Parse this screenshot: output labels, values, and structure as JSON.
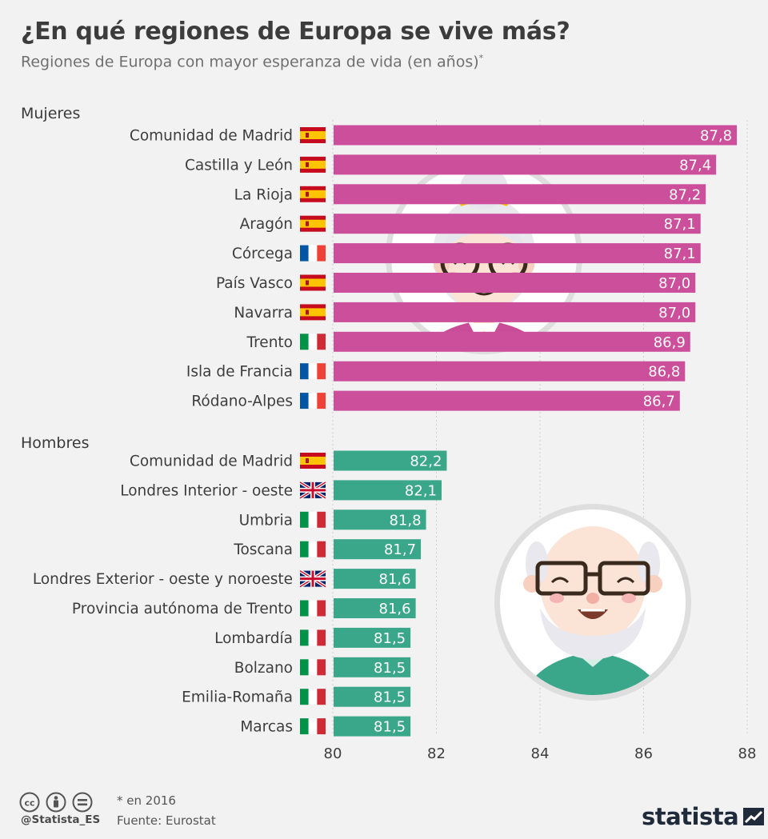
{
  "title": "¿En qué regiones de Europa se vive más?",
  "subtitle": "Regiones de Europa con mayor esperanza de vida (en años)",
  "subtitle_mark": "*",
  "colors": {
    "women_bar": "#cc4f9b",
    "men_bar": "#3aa68a",
    "background": "#f2f2f2"
  },
  "chart_data": {
    "type": "bar",
    "orientation": "horizontal",
    "xlim": [
      80,
      88
    ],
    "xticks": [
      "80",
      "82",
      "84",
      "86",
      "88"
    ],
    "grid": true,
    "groups": [
      {
        "name": "Mujeres",
        "color": "#cc4f9b",
        "rows": [
          {
            "label": "Comunidad de Madrid",
            "flag": "spain-flag-icon",
            "value": 87.8,
            "value_label": "87,8"
          },
          {
            "label": "Castilla y León",
            "flag": "spain-flag-icon",
            "value": 87.4,
            "value_label": "87,4"
          },
          {
            "label": "La Rioja",
            "flag": "spain-flag-icon",
            "value": 87.2,
            "value_label": "87,2"
          },
          {
            "label": "Aragón",
            "flag": "spain-flag-icon",
            "value": 87.1,
            "value_label": "87,1"
          },
          {
            "label": "Córcega",
            "flag": "france-flag-icon",
            "value": 87.1,
            "value_label": "87,1"
          },
          {
            "label": "País Vasco",
            "flag": "spain-flag-icon",
            "value": 87.0,
            "value_label": "87,0"
          },
          {
            "label": "Navarra",
            "flag": "spain-flag-icon",
            "value": 87.0,
            "value_label": "87,0"
          },
          {
            "label": "Trento",
            "flag": "italy-flag-icon",
            "value": 86.9,
            "value_label": "86,9"
          },
          {
            "label": "Isla de Francia",
            "flag": "france-flag-icon",
            "value": 86.8,
            "value_label": "86,8"
          },
          {
            "label": "Ródano-Alpes",
            "flag": "france-flag-icon",
            "value": 86.7,
            "value_label": "86,7"
          }
        ]
      },
      {
        "name": "Hombres",
        "color": "#3aa68a",
        "rows": [
          {
            "label": "Comunidad de Madrid",
            "flag": "spain-flag-icon",
            "value": 82.2,
            "value_label": "82,2"
          },
          {
            "label": "Londres Interior - oeste",
            "flag": "uk-flag-icon",
            "value": 82.1,
            "value_label": "82,1"
          },
          {
            "label": "Umbria",
            "flag": "italy-flag-icon",
            "value": 81.8,
            "value_label": "81,8"
          },
          {
            "label": "Toscana",
            "flag": "italy-flag-icon",
            "value": 81.7,
            "value_label": "81,7"
          },
          {
            "label": "Londres Exterior - oeste y noroeste",
            "flag": "uk-flag-icon",
            "value": 81.6,
            "value_label": "81,6"
          },
          {
            "label": "Provincia autónoma de Trento",
            "flag": "italy-flag-icon",
            "value": 81.6,
            "value_label": "81,6"
          },
          {
            "label": "Lombardía",
            "flag": "italy-flag-icon",
            "value": 81.5,
            "value_label": "81,5"
          },
          {
            "label": "Bolzano",
            "flag": "italy-flag-icon",
            "value": 81.5,
            "value_label": "81,5"
          },
          {
            "label": "Emilia-Romaña",
            "flag": "italy-flag-icon",
            "value": 81.5,
            "value_label": "81,5"
          },
          {
            "label": "Marcas",
            "flag": "italy-flag-icon",
            "value": 81.5,
            "value_label": "81,5"
          }
        ]
      }
    ]
  },
  "illustrations": {
    "woman": "grandmother-illustration",
    "man": "grandfather-illustration"
  },
  "footer": {
    "license_icons": [
      "cc-icon",
      "by-icon",
      "nd-icon"
    ],
    "handle": "@Statista_ES",
    "note": "* en 2016",
    "source": "Fuente: Eurostat",
    "brand": "statista"
  }
}
